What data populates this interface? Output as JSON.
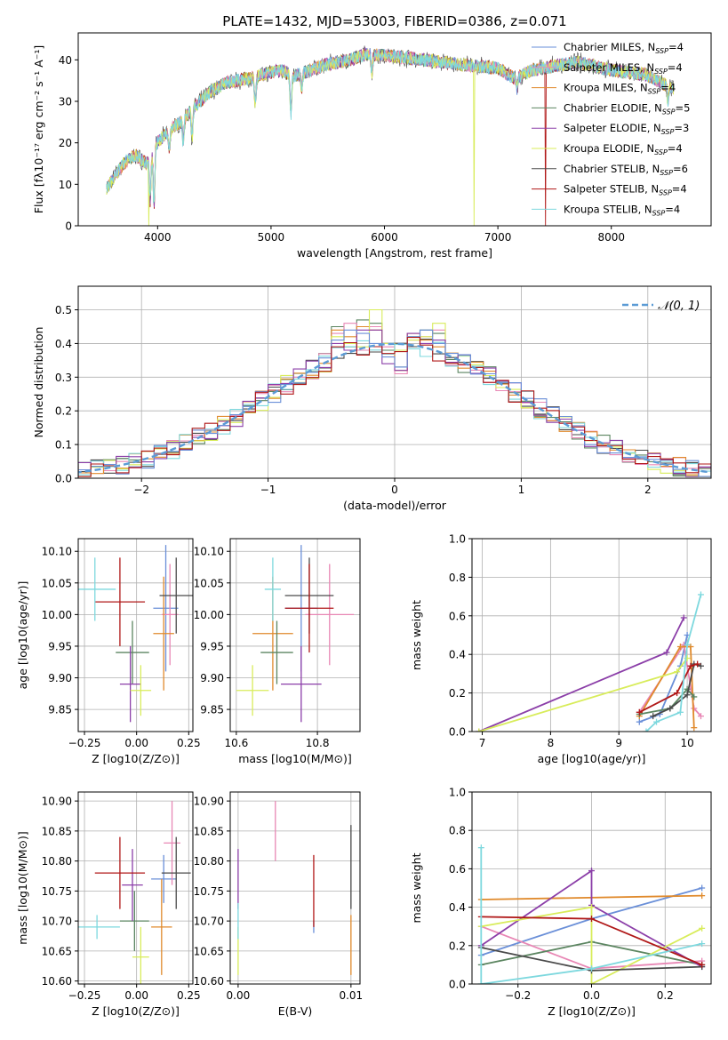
{
  "figure_title": "PLATE=1432, MJD=53003, FIBERID=0386, z=0.071",
  "chart_data": [
    {
      "id": "spectrum",
      "type": "line",
      "title": "PLATE=1432, MJD=53003, FIBERID=0386, z=0.071",
      "xlabel": "wavelength [Angstrom, rest frame]",
      "ylabel": "Flux [fλ10⁻¹⁷ erg cm⁻² s⁻¹ A⁻¹]",
      "xlim": [
        3300,
        8880
      ],
      "ylim": [
        0,
        46.5
      ],
      "xticks": [
        4000,
        5000,
        6000,
        7000,
        8000
      ],
      "yticks": [
        0,
        10,
        20,
        30,
        40
      ],
      "legend_position": "top-right",
      "continuum": [
        [
          3550,
          9
        ],
        [
          3700,
          15
        ],
        [
          3800,
          17
        ],
        [
          3900,
          15
        ],
        [
          4000,
          20
        ],
        [
          4100,
          23
        ],
        [
          4200,
          25
        ],
        [
          4300,
          28
        ],
        [
          4450,
          32
        ],
        [
          4600,
          34.5
        ],
        [
          4800,
          35.5
        ],
        [
          5000,
          37
        ],
        [
          5100,
          37.5
        ],
        [
          5200,
          36
        ],
        [
          5300,
          37
        ],
        [
          5500,
          39
        ],
        [
          5700,
          40
        ],
        [
          5850,
          41.5
        ],
        [
          6000,
          41
        ],
        [
          6200,
          40.5
        ],
        [
          6500,
          39.5
        ],
        [
          6800,
          38.5
        ],
        [
          7000,
          38
        ],
        [
          7150,
          35.5
        ],
        [
          7300,
          37.5
        ],
        [
          7500,
          38.5
        ],
        [
          7700,
          39.5
        ],
        [
          8000,
          37.5
        ],
        [
          8300,
          36.5
        ],
        [
          8550,
          33
        ]
      ],
      "absorption_lines": [
        [
          3934,
          6
        ],
        [
          3968,
          5
        ],
        [
          4102,
          18
        ],
        [
          4226,
          20
        ],
        [
          4304,
          21
        ],
        [
          4861,
          29
        ],
        [
          5175,
          27
        ],
        [
          5270,
          33
        ],
        [
          5890,
          37
        ],
        [
          7170,
          33
        ],
        [
          8500,
          30
        ]
      ],
      "spikes": [
        {
          "x": 3920,
          "y": 0,
          "series": 5
        },
        {
          "x": 6790,
          "y": 0,
          "series": 5
        },
        {
          "x": 7420,
          "y": 0,
          "series": 7
        }
      ],
      "series": [
        {
          "name": "Chabrier MILES, N_SSP=4",
          "color": "#6a8fd8"
        },
        {
          "name": "Salpeter MILES, N_SSP=4",
          "color": "#e887b5"
        },
        {
          "name": "Kroupa MILES, N_SSP=4",
          "color": "#e08a2c"
        },
        {
          "name": "Chabrier ELODIE, N_SSP=5",
          "color": "#5b8560"
        },
        {
          "name": "Salpeter ELODIE, N_SSP=3",
          "color": "#8b3ea8"
        },
        {
          "name": "Kroupa ELODIE, N_SSP=4",
          "color": "#d8ec5a"
        },
        {
          "name": "Chabrier STELIB, N_SSP=6",
          "color": "#4a4a4a"
        },
        {
          "name": "Salpeter STELIB, N_SSP=4",
          "color": "#b01818"
        },
        {
          "name": "Kroupa STELIB, N_SSP=4",
          "color": "#7dd8de"
        }
      ]
    },
    {
      "id": "residuals",
      "type": "histogram",
      "xlabel": "(data-model)/error",
      "ylabel": "Normed distribution",
      "xlim": [
        -2.5,
        2.5
      ],
      "ylim": [
        0,
        0.57
      ],
      "xticks": [
        -2,
        -1,
        0,
        1,
        2
      ],
      "yticks": [
        0.0,
        0.1,
        0.2,
        0.3,
        0.4,
        0.5
      ],
      "grid": true,
      "bin_width": 0.1,
      "legend_position": "top-right",
      "reference_curve": {
        "name": "𝒩(0, 1)",
        "color": "#5b9bd5",
        "style": "dashed"
      },
      "series_values": {
        "0": [
          0.41,
          0.44,
          0.43,
          0.4,
          0.36,
          0.33,
          0.42,
          0.44,
          0.4
        ],
        "1": [
          0.43,
          0.46,
          0.38,
          0.45,
          0.39,
          0.31,
          0.41,
          0.42,
          0.44
        ],
        "2": [
          0.44,
          0.42,
          0.45,
          0.44,
          0.4,
          0.32,
          0.43,
          0.41,
          0.39
        ],
        "3": [
          0.45,
          0.39,
          0.47,
          0.46,
          0.38,
          0.33,
          0.42,
          0.44,
          0.43
        ],
        "4": [
          0.4,
          0.38,
          0.44,
          0.44,
          0.34,
          0.32,
          0.43,
          0.4,
          0.41
        ],
        "5": [
          0.42,
          0.4,
          0.39,
          0.5,
          0.4,
          0.38,
          0.41,
          0.42,
          0.46
        ]
      }
    },
    {
      "id": "age_vs_Z",
      "type": "errorbar",
      "xlabel": "Z [log10(Z/Z⊙)]",
      "ylabel": "age  [log10(age/yr)]",
      "xlim": [
        -0.28,
        0.27
      ],
      "ylim": [
        9.815,
        10.12
      ],
      "xticks": [
        -0.25,
        0.0,
        0.25
      ],
      "xticklabels": [
        "−0.25",
        "0.00",
        "0.25"
      ],
      "yticks": [
        9.85,
        9.9,
        9.95,
        10.0,
        10.05,
        10.1
      ],
      "grid": true,
      "points": [
        {
          "series": 0,
          "x": 0.14,
          "xerr": 0.06,
          "y": 10.01,
          "yerr": 0.1
        },
        {
          "series": 1,
          "x": 0.16,
          "xerr": 0.04,
          "y": 10.0,
          "yerr": 0.08
        },
        {
          "series": 2,
          "x": 0.13,
          "xerr": 0.05,
          "y": 9.97,
          "yerr": 0.09
        },
        {
          "series": 3,
          "x": -0.02,
          "xerr": 0.08,
          "y": 9.94,
          "yerr": 0.05
        },
        {
          "series": 4,
          "x": -0.03,
          "xerr": 0.05,
          "y": 9.89,
          "yerr": 0.06
        },
        {
          "series": 5,
          "x": 0.02,
          "xerr": 0.05,
          "y": 9.88,
          "yerr": 0.04
        },
        {
          "series": 6,
          "x": 0.19,
          "xerr": 0.08,
          "y": 10.03,
          "yerr": 0.06
        },
        {
          "series": 7,
          "x": -0.08,
          "xerr": 0.12,
          "y": 10.02,
          "yerr": 0.07
        },
        {
          "series": 8,
          "x": -0.2,
          "xerr": 0.1,
          "y": 10.04,
          "yerr": 0.05
        }
      ]
    },
    {
      "id": "age_vs_mass",
      "type": "errorbar",
      "xlabel": "mass [log10(M/M⊙)]",
      "xlim": [
        10.585,
        10.905
      ],
      "ylim": [
        9.815,
        10.12
      ],
      "xticks": [
        10.6,
        10.8
      ],
      "xticklabels": [
        "10.6",
        "10.8"
      ],
      "yticks": [
        9.85,
        9.9,
        9.95,
        10.0,
        10.05,
        10.1
      ],
      "grid": true,
      "points": [
        {
          "series": 0,
          "x": 10.76,
          "xerr": 0.04,
          "y": 10.01,
          "yerr": 0.1
        },
        {
          "series": 1,
          "x": 10.83,
          "xerr": 0.06,
          "y": 10.0,
          "yerr": 0.08
        },
        {
          "series": 2,
          "x": 10.69,
          "xerr": 0.05,
          "y": 9.97,
          "yerr": 0.09
        },
        {
          "series": 3,
          "x": 10.7,
          "xerr": 0.04,
          "y": 9.94,
          "yerr": 0.05
        },
        {
          "series": 4,
          "x": 10.76,
          "xerr": 0.05,
          "y": 9.89,
          "yerr": 0.06
        },
        {
          "series": 5,
          "x": 10.64,
          "xerr": 0.04,
          "y": 9.88,
          "yerr": 0.04
        },
        {
          "series": 6,
          "x": 10.78,
          "xerr": 0.06,
          "y": 10.03,
          "yerr": 0.06
        },
        {
          "series": 7,
          "x": 10.78,
          "xerr": 0.06,
          "y": 10.01,
          "yerr": 0.07
        },
        {
          "series": 8,
          "x": 10.69,
          "xerr": 0.02,
          "y": 10.04,
          "yerr": 0.05
        }
      ]
    },
    {
      "id": "mass_weight_vs_age",
      "type": "line",
      "xlabel": "age  [log10(age/yr)]",
      "ylabel": "mass weight",
      "xlim": [
        6.85,
        10.35
      ],
      "ylim": [
        0,
        1.0
      ],
      "xticks": [
        7,
        8,
        9,
        10
      ],
      "yticks": [
        0.0,
        0.2,
        0.4,
        0.6,
        0.8,
        1.0
      ],
      "grid": true,
      "lines": [
        {
          "series": 0,
          "points": [
            [
              9.3,
              0.05
            ],
            [
              9.6,
              0.09
            ],
            [
              9.9,
              0.34
            ],
            [
              10.0,
              0.5
            ]
          ]
        },
        {
          "series": 1,
          "points": [
            [
              9.3,
              0.1
            ],
            [
              9.95,
              0.45
            ],
            [
              10.1,
              0.12
            ],
            [
              10.2,
              0.08
            ]
          ]
        },
        {
          "series": 2,
          "points": [
            [
              9.3,
              0.08
            ],
            [
              9.9,
              0.44
            ],
            [
              10.05,
              0.44
            ],
            [
              10.1,
              0.02
            ]
          ]
        },
        {
          "series": 3,
          "points": [
            [
              9.3,
              0.09
            ],
            [
              9.75,
              0.12
            ],
            [
              10.0,
              0.22
            ],
            [
              10.1,
              0.18
            ]
          ]
        },
        {
          "series": 4,
          "points": [
            [
              6.95,
              0.0
            ],
            [
              9.7,
              0.41
            ],
            [
              9.95,
              0.59
            ]
          ]
        },
        {
          "series": 5,
          "points": [
            [
              6.95,
              0.0
            ],
            [
              9.85,
              0.31
            ],
            [
              10.0,
              0.38
            ]
          ]
        },
        {
          "series": 6,
          "points": [
            [
              9.5,
              0.08
            ],
            [
              9.75,
              0.12
            ],
            [
              10.0,
              0.19
            ],
            [
              10.1,
              0.35
            ],
            [
              10.2,
              0.34
            ]
          ]
        },
        {
          "series": 7,
          "points": [
            [
              9.3,
              0.1
            ],
            [
              9.85,
              0.2
            ],
            [
              10.05,
              0.34
            ],
            [
              10.15,
              0.35
            ]
          ]
        },
        {
          "series": 8,
          "points": [
            [
              9.4,
              0.0
            ],
            [
              9.55,
              0.05
            ],
            [
              9.9,
              0.1
            ],
            [
              10.0,
              0.45
            ],
            [
              10.2,
              0.71
            ]
          ]
        }
      ]
    },
    {
      "id": "mass_vs_Z",
      "type": "errorbar",
      "xlabel": "Z [log10(Z/Z⊙)]",
      "ylabel": "mass [log10(M/M⊙)]",
      "xlim": [
        -0.28,
        0.27
      ],
      "ylim": [
        10.595,
        10.915
      ],
      "xticks": [
        -0.25,
        0.0,
        0.25
      ],
      "xticklabels": [
        "−0.25",
        "0.00",
        "0.25"
      ],
      "yticks": [
        10.6,
        10.65,
        10.7,
        10.75,
        10.8,
        10.85,
        10.9
      ],
      "grid": true,
      "points": [
        {
          "series": 0,
          "x": 0.13,
          "xerr": 0.06,
          "y": 10.77,
          "yerr": 0.04
        },
        {
          "series": 1,
          "x": 0.17,
          "xerr": 0.04,
          "y": 10.83,
          "yerr": 0.07
        },
        {
          "series": 2,
          "x": 0.12,
          "xerr": 0.05,
          "y": 10.69,
          "yerr": 0.08
        },
        {
          "series": 3,
          "x": -0.01,
          "xerr": 0.07,
          "y": 10.7,
          "yerr": 0.05
        },
        {
          "series": 4,
          "x": -0.02,
          "xerr": 0.05,
          "y": 10.76,
          "yerr": 0.06
        },
        {
          "series": 5,
          "x": 0.02,
          "xerr": 0.04,
          "y": 10.64,
          "yerr": 0.05
        },
        {
          "series": 6,
          "x": 0.19,
          "xerr": 0.07,
          "y": 10.78,
          "yerr": 0.06
        },
        {
          "series": 7,
          "x": -0.08,
          "xerr": 0.12,
          "y": 10.78,
          "yerr": 0.06
        },
        {
          "series": 8,
          "x": -0.19,
          "xerr": 0.11,
          "y": 10.69,
          "yerr": 0.02
        }
      ]
    },
    {
      "id": "mass_vs_ebv",
      "type": "errorbar",
      "xlabel": "E(B-V)",
      "xlim": [
        -0.0007,
        0.0108
      ],
      "ylim": [
        10.595,
        10.915
      ],
      "xticks": [
        0.0,
        0.01
      ],
      "xticklabels": [
        "0.00",
        "0.01"
      ],
      "yticks": [
        10.6,
        10.65,
        10.7,
        10.75,
        10.8,
        10.85,
        10.9
      ],
      "grid": true,
      "points": [
        {
          "series": 4,
          "x": 0.0,
          "xerr": 0,
          "y": 10.77,
          "yerr": 0.05
        },
        {
          "series": 5,
          "x": 0.0,
          "xerr": 0,
          "y": 10.65,
          "yerr": 0.04
        },
        {
          "series": 8,
          "x": 0.0,
          "xerr": 0,
          "y": 10.7,
          "yerr": 0.03
        },
        {
          "series": 1,
          "x": 0.0033,
          "xerr": 0,
          "y": 10.85,
          "yerr": 0.05
        },
        {
          "series": 0,
          "x": 0.0067,
          "xerr": 0,
          "y": 10.69,
          "yerr": 0.01
        },
        {
          "series": 7,
          "x": 0.0067,
          "xerr": 0,
          "y": 10.75,
          "yerr": 0.06
        },
        {
          "series": 6,
          "x": 0.01,
          "xerr": 0,
          "y": 10.79,
          "yerr": 0.07
        },
        {
          "series": 2,
          "x": 0.01,
          "xerr": 0,
          "y": 10.66,
          "yerr": 0.05
        }
      ]
    },
    {
      "id": "mass_weight_vs_Z",
      "type": "line",
      "xlabel": "Z [log10(Z/Z⊙)]",
      "ylabel": "mass weight",
      "xlim": [
        -0.325,
        0.325
      ],
      "ylim": [
        0,
        1.0
      ],
      "xticks": [
        -0.2,
        0.0,
        0.2
      ],
      "xticklabels": [
        "−0.2",
        "0.0",
        "0.2"
      ],
      "yticks": [
        0.0,
        0.2,
        0.4,
        0.6,
        0.8,
        1.0
      ],
      "grid": true,
      "lines": [
        {
          "series": 0,
          "points": [
            [
              -0.3,
              0.15
            ],
            [
              0.0,
              0.34
            ],
            [
              0.3,
              0.5
            ]
          ]
        },
        {
          "series": 1,
          "points": [
            [
              -0.3,
              0.3
            ],
            [
              0.0,
              0.08
            ],
            [
              0.3,
              0.12
            ]
          ]
        },
        {
          "series": 2,
          "points": [
            [
              -0.3,
              0.44
            ],
            [
              0.3,
              0.46
            ]
          ]
        },
        {
          "series": 3,
          "points": [
            [
              -0.3,
              0.1
            ],
            [
              0.0,
              0.22
            ],
            [
              0.3,
              0.1
            ]
          ]
        },
        {
          "series": 4,
          "points": [
            [
              -0.3,
              0.2
            ],
            [
              0.0,
              0.59
            ],
            [
              0.0,
              0.41
            ],
            [
              0.3,
              0.09
            ]
          ]
        },
        {
          "series": 5,
          "points": [
            [
              -0.3,
              0.3
            ],
            [
              0.0,
              0.4
            ],
            [
              0.0,
              0.0
            ],
            [
              0.3,
              0.29
            ]
          ]
        },
        {
          "series": 6,
          "points": [
            [
              -0.3,
              0.19
            ],
            [
              0.0,
              0.07
            ],
            [
              0.3,
              0.09
            ]
          ]
        },
        {
          "series": 7,
          "points": [
            [
              -0.3,
              0.35
            ],
            [
              0.0,
              0.34
            ],
            [
              0.3,
              0.1
            ]
          ]
        },
        {
          "series": 8,
          "points": [
            [
              -0.3,
              0.71
            ],
            [
              -0.3,
              0.0
            ],
            [
              0.0,
              0.08
            ],
            [
              0.3,
              0.21
            ]
          ]
        }
      ]
    }
  ]
}
